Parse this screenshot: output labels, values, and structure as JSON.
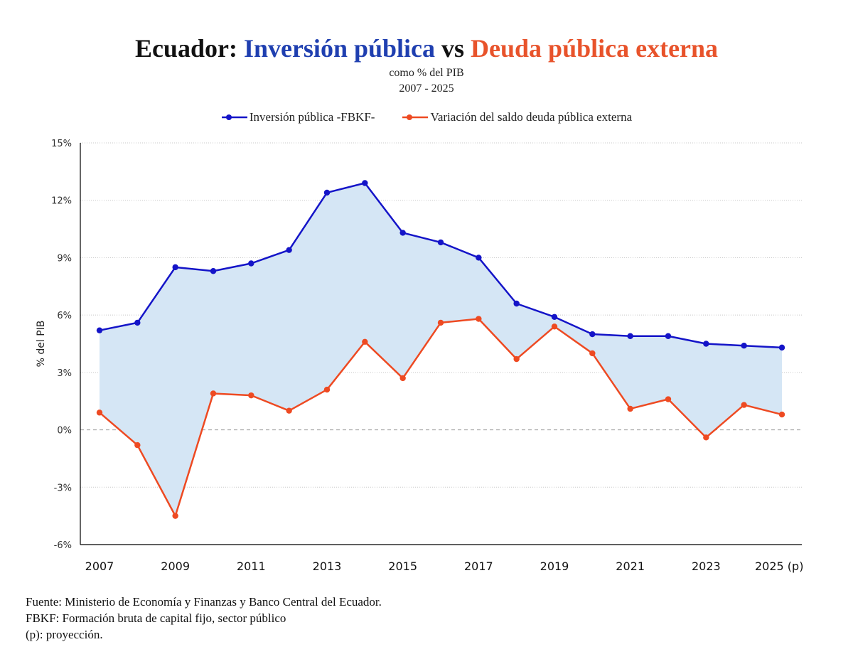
{
  "header": {
    "title_part1": "Ecuador: ",
    "title_part2": "Inversión pública",
    "title_part3": " vs ",
    "title_part4": "Deuda pública externa",
    "subtitle1": "como % del PIB",
    "subtitle2": "2007 - 2025"
  },
  "footer": {
    "line1": "Fuente: Ministerio de Economía y Finanzas y Banco Central del Ecuador.",
    "line2": "FBKF: Formación bruta de capital fijo, sector público",
    "line3": "(p): proyección."
  },
  "chart_data": {
    "type": "line",
    "title": "Ecuador: Inversión pública vs Deuda pública externa",
    "ylabel": "% del PIB",
    "xlabel": "",
    "ylim": [
      -6,
      15
    ],
    "y_ticks": [
      15,
      12,
      9,
      6,
      3,
      0,
      -3,
      -6
    ],
    "y_tick_labels": [
      "15%",
      "12%",
      "9%",
      "6%",
      "3%",
      "0%",
      "-3%",
      "-6%"
    ],
    "x": [
      2007,
      2008,
      2009,
      2010,
      2011,
      2012,
      2013,
      2014,
      2015,
      2016,
      2017,
      2018,
      2019,
      2020,
      2021,
      2022,
      2023,
      2024,
      2025
    ],
    "x_tick_labels": [
      "2007",
      "2009",
      "2011",
      "2013",
      "2015",
      "2017",
      "2019",
      "2021",
      "2023",
      "2025 (p)"
    ],
    "x_tick_years": [
      2007,
      2009,
      2011,
      2013,
      2015,
      2017,
      2019,
      2021,
      2023,
      2025
    ],
    "grid": true,
    "legend_position": "top-center",
    "fill_between": true,
    "series": [
      {
        "name": "Inversión pública -FBKF-",
        "color": "#1414c8",
        "values": [
          5.2,
          5.6,
          8.5,
          8.3,
          8.7,
          9.4,
          12.4,
          12.9,
          10.3,
          9.8,
          9.0,
          6.6,
          5.9,
          5.0,
          4.9,
          4.9,
          4.5,
          4.4,
          4.3
        ]
      },
      {
        "name": "Variación del saldo deuda pública externa",
        "color": "#ee4a22",
        "values": [
          0.9,
          -0.8,
          -4.5,
          1.9,
          1.8,
          1.0,
          2.1,
          4.6,
          2.7,
          5.6,
          5.8,
          3.7,
          5.4,
          4.0,
          1.1,
          1.6,
          -0.4,
          1.3,
          0.8
        ]
      }
    ],
    "colors": {
      "fill": "#d5e6f5",
      "grid": "#c8c8c8",
      "zero_line": "#9a9a9a",
      "axis": "#000000"
    }
  }
}
